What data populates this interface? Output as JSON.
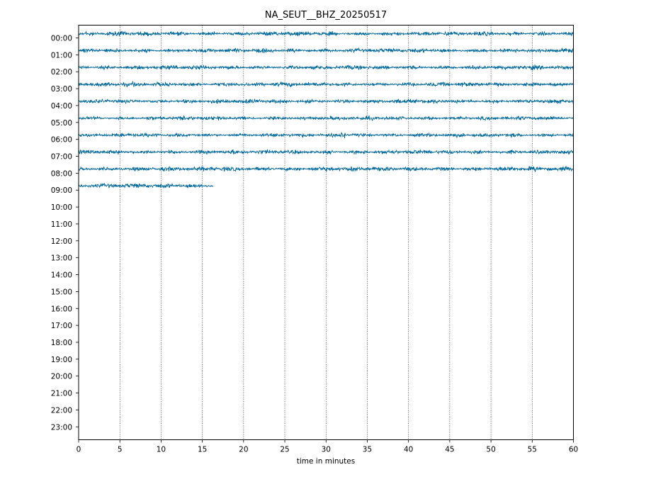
{
  "chart_data": {
    "type": "line",
    "title": "NA_SEUT__BHZ_20250517",
    "xlabel": "time in minutes",
    "ylabel": "",
    "xlim": [
      0,
      60
    ],
    "x_ticks": [
      0,
      5,
      10,
      15,
      20,
      25,
      30,
      35,
      40,
      45,
      50,
      55,
      60
    ],
    "y_tick_labels": [
      "00:00",
      "01:00",
      "02:00",
      "03:00",
      "04:00",
      "05:00",
      "06:00",
      "07:00",
      "08:00",
      "09:00",
      "10:00",
      "11:00",
      "12:00",
      "13:00",
      "14:00",
      "15:00",
      "16:00",
      "17:00",
      "18:00",
      "19:00",
      "20:00",
      "21:00",
      "22:00",
      "23:00"
    ],
    "grid": "vertical dotted at x ticks",
    "trace_color": "#00689b",
    "series": [
      {
        "hour": "00:00",
        "start_min": 0,
        "end_min": 60,
        "amplitude": 1.0
      },
      {
        "hour": "01:00",
        "start_min": 0,
        "end_min": 60,
        "amplitude": 1.0
      },
      {
        "hour": "02:00",
        "start_min": 0,
        "end_min": 60,
        "amplitude": 1.0
      },
      {
        "hour": "03:00",
        "start_min": 0,
        "end_min": 60,
        "amplitude": 1.0
      },
      {
        "hour": "04:00",
        "start_min": 0,
        "end_min": 60,
        "amplitude": 1.0
      },
      {
        "hour": "05:00",
        "start_min": 0,
        "end_min": 60,
        "amplitude": 0.9
      },
      {
        "hour": "06:00",
        "start_min": 0,
        "end_min": 60,
        "amplitude": 0.9,
        "event_min": 32.1
      },
      {
        "hour": "07:00",
        "start_min": 0,
        "end_min": 60,
        "amplitude": 1.0
      },
      {
        "hour": "08:00",
        "start_min": 0,
        "end_min": 60,
        "amplitude": 1.1
      },
      {
        "hour": "09:00",
        "start_min": 0,
        "end_min": 16.3,
        "amplitude": 1.1
      }
    ]
  }
}
